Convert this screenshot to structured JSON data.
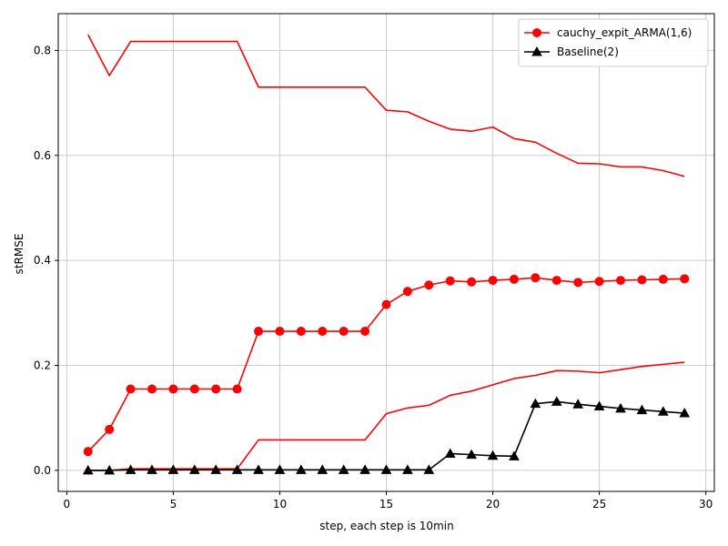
{
  "chart_data": {
    "type": "line",
    "title": "",
    "xlabel": "step, each step is 10min",
    "ylabel": "stRMSE",
    "xlim": [
      -0.4,
      30.4
    ],
    "ylim": [
      -0.04,
      0.87
    ],
    "xticks": [
      0,
      5,
      10,
      15,
      20,
      25,
      30
    ],
    "yticks": [
      0.0,
      0.2,
      0.4,
      0.6,
      0.8
    ],
    "grid": true,
    "legend_position": "top-right",
    "x": [
      1,
      2,
      3,
      4,
      5,
      6,
      7,
      8,
      9,
      10,
      11,
      12,
      13,
      14,
      15,
      16,
      17,
      18,
      19,
      20,
      21,
      22,
      23,
      24,
      25,
      26,
      27,
      28,
      29
    ],
    "series": [
      {
        "name": "cauchy_expit_ARMA(1,6)",
        "color": "#ff0000",
        "marker": "circle",
        "in_legend": true,
        "values": [
          0.036,
          0.078,
          0.155,
          0.155,
          0.155,
          0.155,
          0.155,
          0.155,
          0.265,
          0.265,
          0.265,
          0.265,
          0.265,
          0.265,
          0.316,
          0.341,
          0.353,
          0.361,
          0.359,
          0.362,
          0.364,
          0.367,
          0.362,
          0.358,
          0.36,
          0.362,
          0.363,
          0.364,
          0.365
        ]
      },
      {
        "name": "Baseline(2)",
        "color": "#000000",
        "marker": "triangle",
        "in_legend": true,
        "values": [
          0.0,
          0.0,
          0.001,
          0.001,
          0.001,
          0.001,
          0.001,
          0.001,
          0.001,
          0.001,
          0.001,
          0.001,
          0.001,
          0.001,
          0.001,
          0.001,
          0.001,
          0.032,
          0.03,
          0.028,
          0.027,
          0.127,
          0.131,
          0.126,
          0.122,
          0.118,
          0.115,
          0.112,
          0.109
        ]
      },
      {
        "name": "upper band",
        "color": "#ff0000",
        "marker": "none",
        "in_legend": false,
        "values": [
          0.83,
          0.752,
          0.817,
          0.817,
          0.817,
          0.817,
          0.817,
          0.817,
          0.73,
          0.73,
          0.73,
          0.73,
          0.73,
          0.73,
          0.686,
          0.683,
          0.665,
          0.65,
          0.646,
          0.654,
          0.632,
          0.625,
          0.604,
          0.585,
          0.584,
          0.578,
          0.578,
          0.571,
          0.56
        ]
      },
      {
        "name": "lower band",
        "color": "#ff0000",
        "marker": "none",
        "in_legend": false,
        "values": [
          0.0,
          0.0,
          0.003,
          0.003,
          0.003,
          0.003,
          0.003,
          0.003,
          0.058,
          0.058,
          0.058,
          0.058,
          0.058,
          0.058,
          0.108,
          0.119,
          0.124,
          0.143,
          0.151,
          0.163,
          0.175,
          0.181,
          0.19,
          0.189,
          0.186,
          0.192,
          0.198,
          0.202,
          0.206
        ]
      }
    ]
  }
}
